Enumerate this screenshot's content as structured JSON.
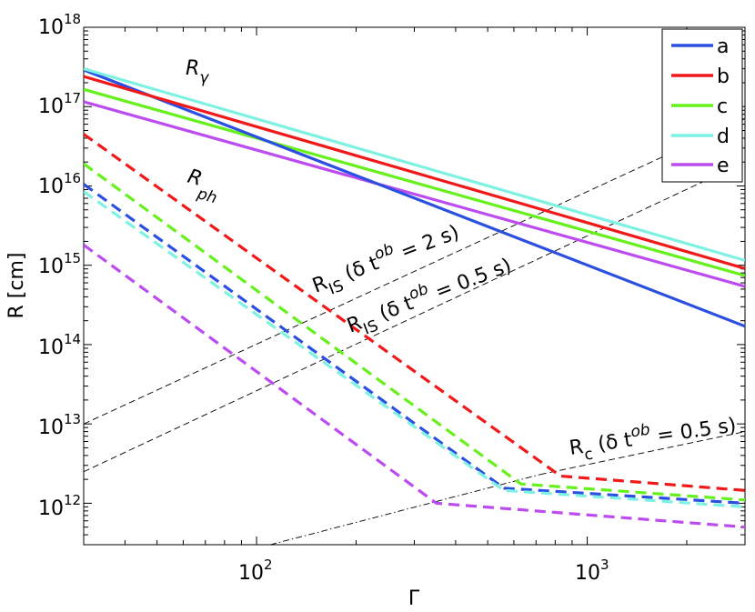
{
  "chart_data": {
    "type": "line",
    "xscale": "log",
    "yscale": "log",
    "xlabel": "Γ",
    "ylabel": "R [cm]",
    "xlim": [
      30,
      3000
    ],
    "ylim": [
      300000000000.0,
      1e+18
    ],
    "x_ticks": [
      {
        "base": "10",
        "exp": "2",
        "value": 100
      },
      {
        "base": "10",
        "exp": "3",
        "value": 1000
      }
    ],
    "y_ticks": [
      {
        "base": "10",
        "exp": "12",
        "value": 1000000000000.0
      },
      {
        "base": "10",
        "exp": "13",
        "value": 10000000000000.0
      },
      {
        "base": "10",
        "exp": "14",
        "value": 100000000000000.0
      },
      {
        "base": "10",
        "exp": "15",
        "value": 1000000000000000.0
      },
      {
        "base": "10",
        "exp": "16",
        "value": 1e+16
      },
      {
        "base": "10",
        "exp": "17",
        "value": 1e+17
      },
      {
        "base": "10",
        "exp": "18",
        "value": 1e+18
      }
    ],
    "legend": {
      "location": "top-right",
      "entries": [
        "a",
        "b",
        "c",
        "d",
        "e"
      ]
    },
    "series": [
      {
        "name": "a",
        "color": "#2b4fe0",
        "r_gamma": [
          [
            30,
            2.9e+17
          ],
          [
            3000,
            170000000000000.0
          ]
        ],
        "r_ph": [
          [
            30,
            1.05e+16
          ],
          [
            560,
            1550000000000.0
          ],
          [
            3000,
            1000000000000.0
          ]
        ]
      },
      {
        "name": "b",
        "color": "#f01818",
        "r_gamma": [
          [
            30,
            2.4e+17
          ],
          [
            3000,
            910000000000000.0
          ]
        ],
        "r_ph": [
          [
            30,
            4.5e+16
          ],
          [
            830,
            2200000000000.0
          ],
          [
            3000,
            1450000000000.0
          ]
        ]
      },
      {
        "name": "c",
        "color": "#66f01c",
        "r_gamma": [
          [
            30,
            1.65e+17
          ],
          [
            3000,
            740000000000000.0
          ]
        ],
        "r_ph": [
          [
            30,
            1.9e+16
          ],
          [
            630,
            1750000000000.0
          ],
          [
            3000,
            1100000000000.0
          ]
        ]
      },
      {
        "name": "d",
        "color": "#7df2e2",
        "r_gamma": [
          [
            30,
            3e+17
          ],
          [
            3000,
            1150000000000000.0
          ]
        ],
        "r_ph": [
          [
            30,
            8500000000000000.0
          ],
          [
            560,
            1450000000000.0
          ],
          [
            3000,
            900000000000.0
          ]
        ]
      },
      {
        "name": "e",
        "color": "#bc4cf0",
        "r_gamma": [
          [
            30,
            1.15e+17
          ],
          [
            3000,
            540000000000000.0
          ]
        ],
        "r_ph": [
          [
            30,
            1800000000000000.0
          ],
          [
            350,
            1000000000000.0
          ],
          [
            3000,
            500000000000.0
          ]
        ]
      }
    ],
    "reference_lines": [
      {
        "name": "R_IS dt=2s",
        "style": "dashed",
        "points": [
          [
            30,
            10000000000000.0
          ],
          [
            3000,
            7e+16
          ]
        ]
      },
      {
        "name": "R_IS dt=0.5s",
        "style": "dashed",
        "points": [
          [
            30,
            2500000000000.0
          ],
          [
            3000,
            2e+16
          ]
        ]
      },
      {
        "name": "R_c dt=0.5s",
        "style": "dashed",
        "points": [
          [
            720,
            2300000000000.0
          ],
          [
            3000,
            8000000000000.0
          ]
        ]
      },
      {
        "name": "R_c extension",
        "style": "dashdot",
        "points": [
          [
            110,
            300000000000.0
          ],
          [
            720,
            2300000000000.0
          ]
        ]
      }
    ],
    "annotations": [
      {
        "main": "R",
        "sub": "γ",
        "rest": ""
      },
      {
        "main": "R",
        "sub": "ph",
        "rest": ""
      },
      {
        "main": "R",
        "sub": "IS",
        "rest": " (δ t",
        "sup": "ob",
        "tail": " = 2 s)"
      },
      {
        "main": "R",
        "sub": "IS",
        "rest": " (δ t",
        "sup": "ob",
        "tail": " = 0.5 s)"
      },
      {
        "main": "R",
        "sub": "c",
        "rest": " (δ t",
        "sup": "ob",
        "tail": " = 0.5 s)"
      }
    ]
  }
}
